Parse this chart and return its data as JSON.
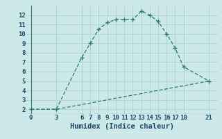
{
  "xlabel": "Humidex (Indice chaleur)",
  "bg_color": "#cce8e8",
  "line_color": "#2a7a70",
  "grid_color": "#b0d8d0",
  "line1_x": [
    0,
    3,
    6,
    7,
    8,
    9,
    10,
    11,
    12,
    13,
    14,
    15,
    16,
    17,
    18,
    21
  ],
  "line1_y": [
    2.0,
    2.0,
    7.5,
    9.0,
    10.5,
    11.2,
    11.5,
    11.5,
    11.5,
    12.4,
    12.0,
    11.3,
    10.0,
    8.5,
    6.5,
    5.0
  ],
  "line2_x": [
    0,
    3,
    21
  ],
  "line2_y": [
    2.0,
    2.0,
    5.0
  ],
  "xlim": [
    -0.5,
    22
  ],
  "ylim": [
    1.5,
    13.0
  ],
  "yticks": [
    2,
    3,
    4,
    5,
    6,
    7,
    8,
    9,
    10,
    11,
    12
  ],
  "xticks": [
    0,
    3,
    6,
    7,
    8,
    9,
    10,
    11,
    12,
    13,
    14,
    15,
    16,
    17,
    18,
    21
  ],
  "tick_fontsize": 6.5,
  "xlabel_fontsize": 7.5
}
